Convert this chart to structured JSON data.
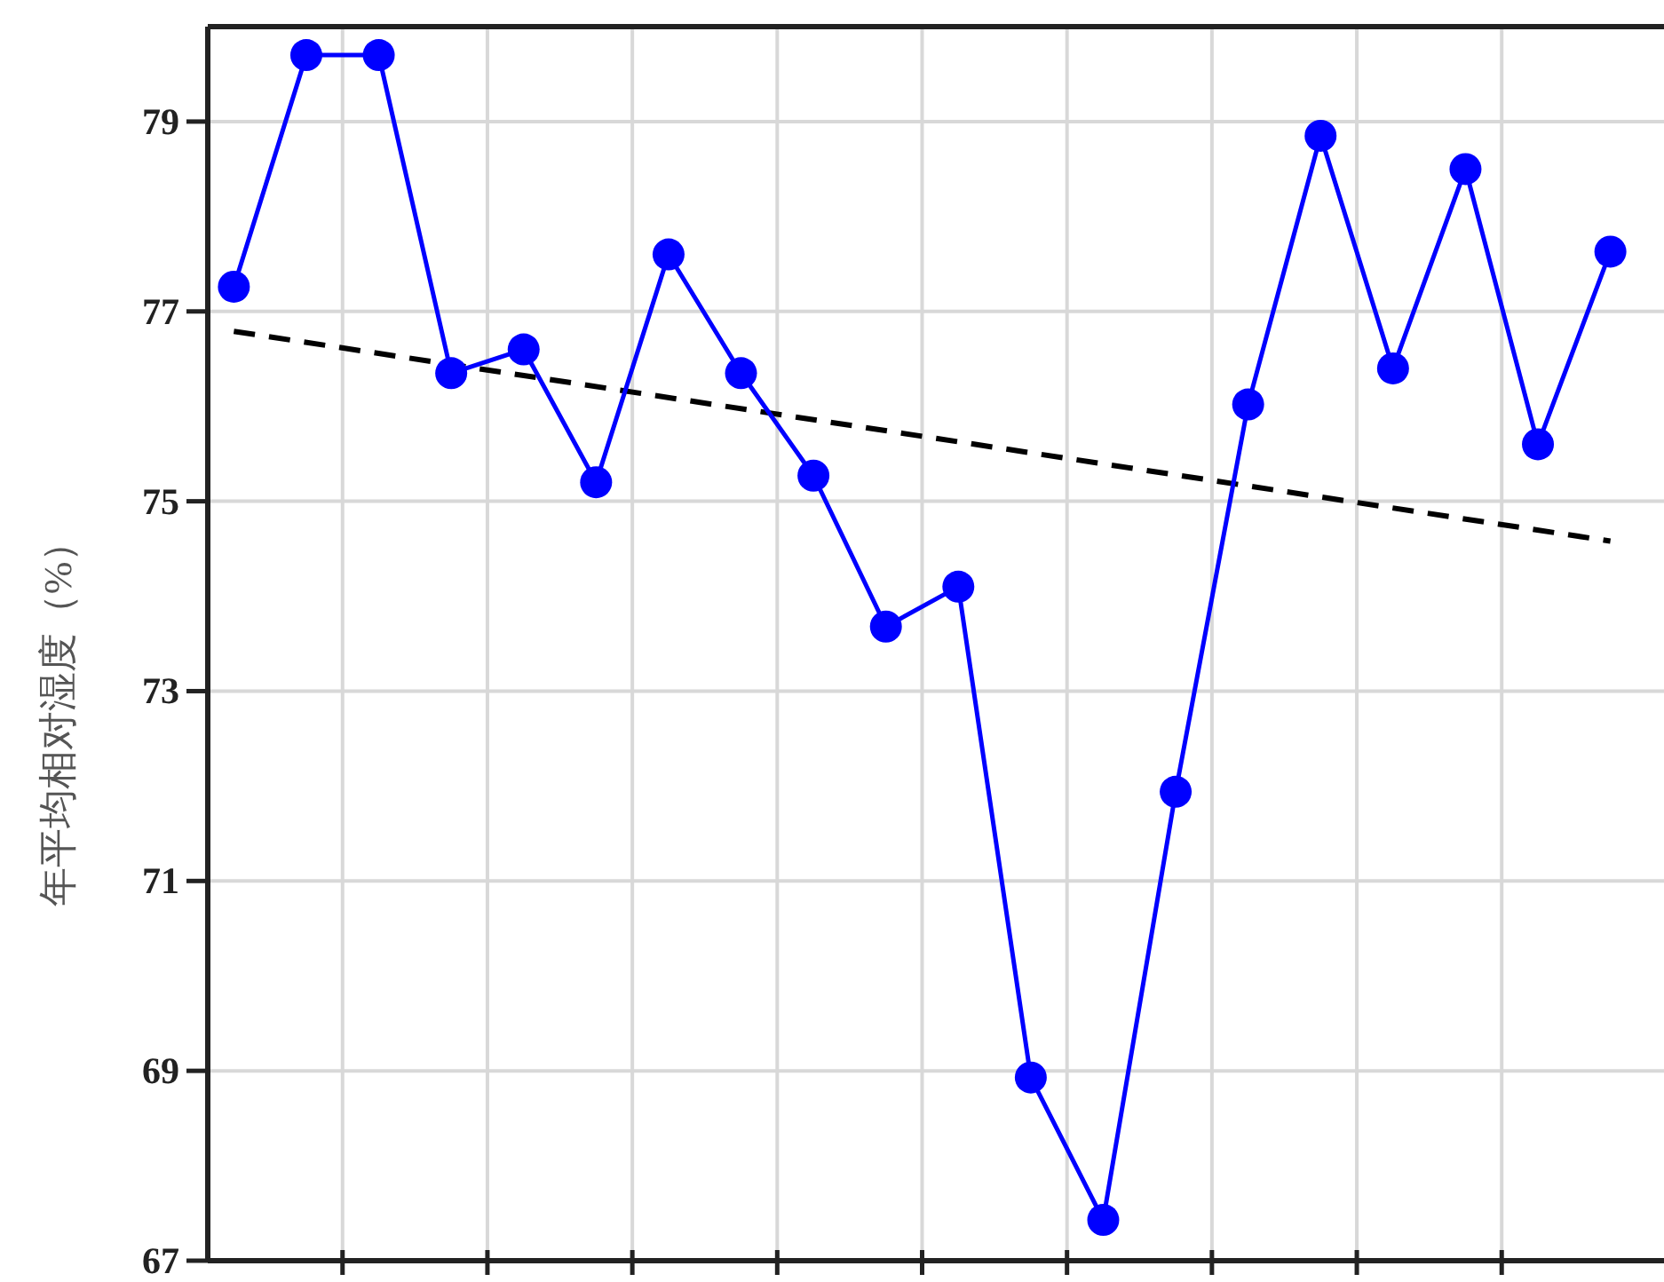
{
  "chart_data": {
    "type": "line",
    "ylabel": "年平均相对湿度（%）",
    "categories": [
      null,
      null,
      null,
      null,
      null,
      null,
      null,
      null,
      null,
      null,
      null,
      null,
      null,
      null,
      null,
      null,
      null,
      null,
      null,
      null
    ],
    "ylim": [
      67,
      80
    ],
    "yticks": [
      67,
      69,
      71,
      73,
      75,
      77,
      79
    ],
    "grid": true,
    "series": [
      {
        "color": "#0000ff",
        "marker": "circle",
        "line_style": "solid",
        "values": [
          77.26,
          79.7,
          79.7,
          76.35,
          76.6,
          75.2,
          77.6,
          76.35,
          75.27,
          73.68,
          74.1,
          68.93,
          67.43,
          71.94,
          76.02,
          78.85,
          76.4,
          78.5,
          75.6,
          77.63
        ]
      },
      {
        "type": "line",
        "color": "#000000",
        "marker": "none",
        "line_style": "dashed",
        "values": [
          76.79,
          null,
          null,
          null,
          null,
          null,
          null,
          null,
          null,
          null,
          null,
          null,
          null,
          null,
          null,
          null,
          null,
          null,
          null,
          74.58
        ]
      }
    ]
  }
}
